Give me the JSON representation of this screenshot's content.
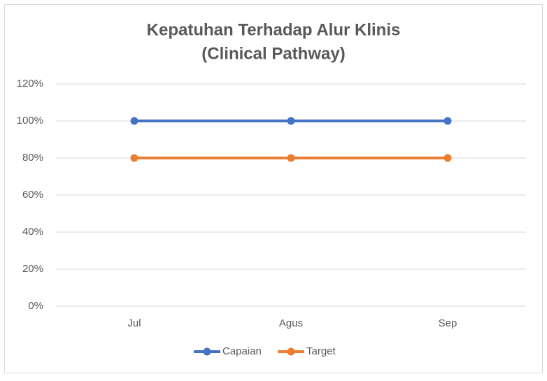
{
  "chart_data": {
    "type": "line",
    "title": [
      "Kepatuhan Terhadap Alur Klinis",
      "(Clinical Pathway)"
    ],
    "categories": [
      "Jul",
      "Agus",
      "Sep"
    ],
    "series": [
      {
        "name": "Capaian",
        "color": "#4472c4",
        "values": [
          100,
          100,
          100
        ]
      },
      {
        "name": "Target",
        "color": "#ed7d31",
        "values": [
          80,
          80,
          80
        ]
      }
    ],
    "ylim": [
      0,
      120
    ],
    "yticks": [
      {
        "value": 0,
        "label": "0%"
      },
      {
        "value": 20,
        "label": "20%"
      },
      {
        "value": 40,
        "label": "40%"
      },
      {
        "value": 60,
        "label": "60%"
      },
      {
        "value": 80,
        "label": "80%"
      },
      {
        "value": 100,
        "label": "100%"
      },
      {
        "value": 120,
        "label": "120%"
      }
    ],
    "grid": true,
    "legend": "bottom"
  }
}
